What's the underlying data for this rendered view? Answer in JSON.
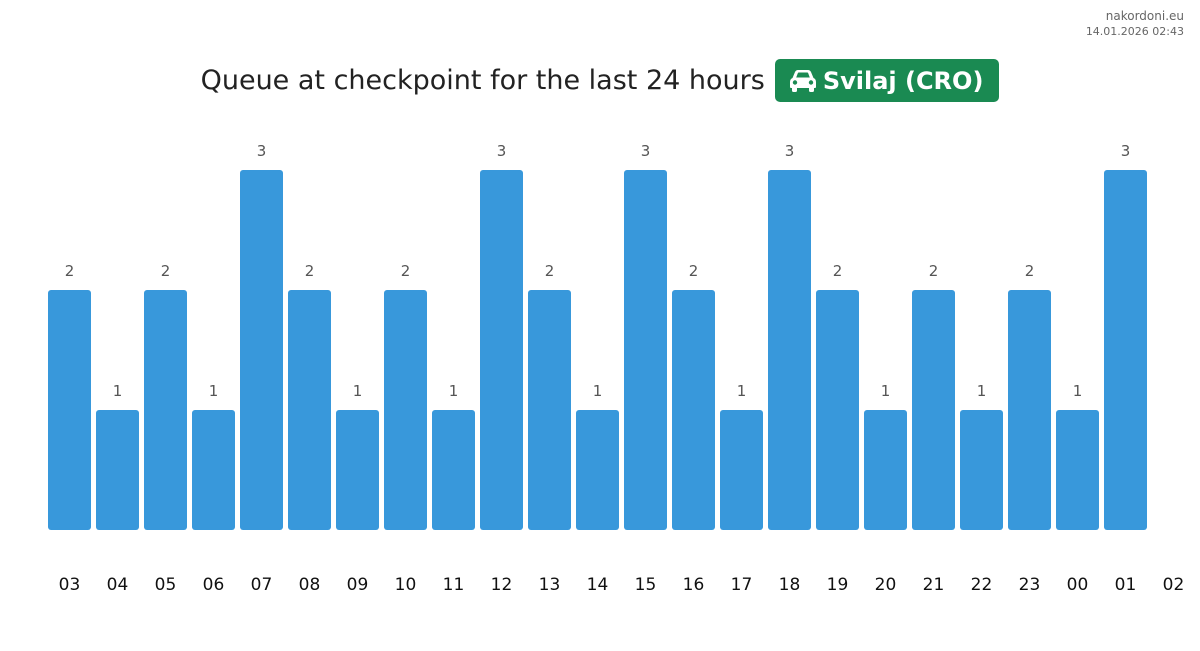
{
  "source": {
    "site": "nakordoni.eu",
    "timestamp": "14.01.2026 02:43"
  },
  "header": {
    "title": "Queue at checkpoint for the last 24 hours",
    "checkpoint": "Svilaj (CRO)",
    "badge_icon": "car-icon",
    "badge_color": "#1a8a52"
  },
  "chart_data": {
    "type": "bar",
    "title": "",
    "xlabel": "",
    "ylabel": "",
    "bar_color": "#3898db",
    "ylim": [
      0,
      3
    ],
    "grid": false,
    "categories": [
      "03",
      "04",
      "05",
      "06",
      "07",
      "08",
      "09",
      "10",
      "11",
      "12",
      "13",
      "14",
      "15",
      "16",
      "17",
      "18",
      "19",
      "20",
      "21",
      "22",
      "23",
      "00",
      "01"
    ],
    "x_tick_labels": [
      "03",
      "04",
      "05",
      "06",
      "07",
      "08",
      "09",
      "10",
      "11",
      "12",
      "13",
      "14",
      "15",
      "16",
      "17",
      "18",
      "19",
      "20",
      "21",
      "22",
      "23",
      "00",
      "01",
      "02"
    ],
    "values": [
      2,
      1,
      2,
      1,
      3,
      2,
      1,
      2,
      1,
      3,
      2,
      1,
      3,
      2,
      1,
      3,
      2,
      1,
      2,
      1,
      2,
      1,
      3
    ]
  }
}
